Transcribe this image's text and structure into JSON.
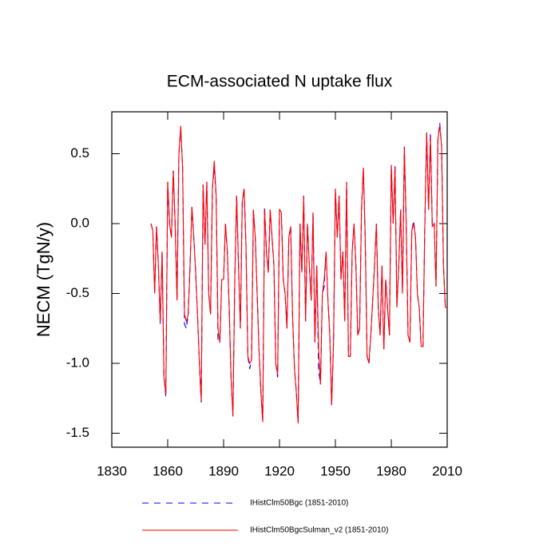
{
  "chart_data": {
    "type": "line",
    "title": "ECM-associated N uptake flux",
    "y_label": "NECM  (TgN/y)",
    "xlim": [
      1830,
      2010
    ],
    "xticks": [
      1830,
      1860,
      1890,
      1920,
      1950,
      1980,
      2010
    ],
    "ylim": [
      -1.6,
      0.8
    ],
    "yticks": [
      {
        "value": 0.5,
        "label": "0.5"
      },
      {
        "value": 0,
        "label": "0.0"
      },
      {
        "value": -0.5,
        "label": "-0.5"
      },
      {
        "value": -1,
        "label": "-1.0"
      },
      {
        "value": -1.5,
        "label": "-1.5"
      }
    ],
    "x": [
      1851,
      1852,
      1853,
      1854,
      1855,
      1856,
      1857,
      1858,
      1859,
      1860,
      1861,
      1862,
      1863,
      1864,
      1865,
      1866,
      1867,
      1868,
      1869,
      1870,
      1871,
      1872,
      1873,
      1874,
      1875,
      1876,
      1877,
      1878,
      1879,
      1880,
      1881,
      1882,
      1883,
      1884,
      1885,
      1886,
      1887,
      1888,
      1889,
      1890,
      1891,
      1892,
      1893,
      1894,
      1895,
      1896,
      1897,
      1898,
      1899,
      1900,
      1901,
      1902,
      1903,
      1904,
      1905,
      1906,
      1907,
      1908,
      1909,
      1910,
      1911,
      1912,
      1913,
      1914,
      1915,
      1916,
      1917,
      1918,
      1919,
      1920,
      1921,
      1922,
      1923,
      1924,
      1925,
      1926,
      1927,
      1928,
      1929,
      1930,
      1931,
      1932,
      1933,
      1934,
      1935,
      1936,
      1937,
      1938,
      1939,
      1940,
      1941,
      1942,
      1943,
      1944,
      1945,
      1946,
      1947,
      1948,
      1949,
      1950,
      1951,
      1952,
      1953,
      1954,
      1955,
      1956,
      1957,
      1958,
      1959,
      1960,
      1961,
      1962,
      1963,
      1964,
      1965,
      1966,
      1967,
      1968,
      1969,
      1970,
      1971,
      1972,
      1973,
      1974,
      1975,
      1976,
      1977,
      1978,
      1979,
      1980,
      1981,
      1982,
      1983,
      1984,
      1985,
      1986,
      1987,
      1988,
      1989,
      1990,
      1991,
      1992,
      1993,
      1994,
      1995,
      1996,
      1997,
      1998,
      1999,
      2000,
      2001,
      2002,
      2003,
      2004,
      2005,
      2006,
      2007,
      2008,
      2009,
      2010
    ],
    "series": [
      {
        "name": "IHistClm50Bgc (1851-2010)",
        "color": "#0000ff",
        "dash": true,
        "values": [
          0.0,
          -0.05,
          -0.5,
          -0.02,
          -0.3,
          -0.72,
          -0.2,
          -1.1,
          -1.24,
          0.3,
          0.0,
          -0.1,
          0.38,
          0.0,
          -0.55,
          0.5,
          0.68,
          0.4,
          -0.72,
          -0.75,
          -0.65,
          -0.3,
          0.12,
          -0.1,
          -0.35,
          -0.65,
          -1.0,
          -1.28,
          0.28,
          -0.15,
          0.3,
          -0.5,
          -0.65,
          0.25,
          0.4,
          0.2,
          -0.85,
          -0.85,
          -0.4,
          -0.4,
          0.0,
          -0.2,
          -0.6,
          -1.1,
          -1.38,
          -0.4,
          0.2,
          -0.3,
          -0.75,
          0.15,
          0.25,
          -0.15,
          -0.95,
          -1.04,
          -0.98,
          0.1,
          -0.1,
          -0.5,
          -0.9,
          -1.2,
          -1.42,
          0.12,
          -0.2,
          -0.35,
          0.1,
          -0.1,
          -0.3,
          -1.0,
          -1.1,
          0.1,
          0.08,
          -0.4,
          -0.5,
          -0.75,
          -0.1,
          -0.02,
          -0.65,
          -1.03,
          -1.2,
          -1.43,
          0.0,
          -0.35,
          0.2,
          -0.7,
          0.0,
          -0.3,
          -0.55,
          0.08,
          -0.85,
          -0.3,
          -1.05,
          -1.15,
          -0.5,
          -0.45,
          -0.2,
          -0.55,
          -0.8,
          -1.3,
          -0.85,
          0.25,
          -0.1,
          0.2,
          -0.4,
          -0.2,
          -0.7,
          0.3,
          -0.95,
          -0.95,
          -0.2,
          0.0,
          -0.3,
          -0.8,
          -0.75,
          0.1,
          0.4,
          -0.1,
          -0.95,
          -1.0,
          -0.8,
          -0.55,
          -0.3,
          0.0,
          -0.6,
          -0.8,
          -0.3,
          -0.9,
          -0.4,
          -0.6,
          -0.8,
          0.42,
          0.0,
          0.42,
          -0.6,
          -0.3,
          0.1,
          -0.5,
          0.55,
          0.0,
          -0.8,
          -0.85,
          -0.05,
          0.02,
          -0.1,
          -0.5,
          -0.6,
          -0.88,
          -0.88,
          0.0,
          0.66,
          0.1,
          0.65,
          -0.02,
          0.0,
          -0.45,
          0.6,
          0.72,
          0.55,
          -0.3,
          -0.6,
          -0.6
        ]
      },
      {
        "name": "IHistClm50BgcSulman_v2 (1851-2010)",
        "color": "#ff0000",
        "dash": false,
        "values": [
          0.0,
          -0.05,
          -0.5,
          -0.02,
          -0.3,
          -0.7,
          -0.2,
          -1.1,
          -1.22,
          0.3,
          0.0,
          -0.1,
          0.38,
          0.0,
          -0.55,
          0.5,
          0.7,
          0.4,
          -0.65,
          -0.7,
          -0.65,
          -0.3,
          0.12,
          -0.1,
          -0.35,
          -0.65,
          -1.0,
          -1.27,
          0.28,
          -0.15,
          0.3,
          -0.5,
          -0.65,
          0.25,
          0.45,
          0.2,
          -0.75,
          -0.85,
          -0.4,
          -0.4,
          0.0,
          -0.2,
          -0.6,
          -1.1,
          -1.38,
          -0.4,
          0.2,
          -0.3,
          -0.75,
          0.15,
          0.25,
          -0.15,
          -0.95,
          -1.0,
          -0.98,
          0.1,
          -0.1,
          -0.5,
          -0.9,
          -1.2,
          -1.42,
          0.1,
          -0.2,
          -0.35,
          0.1,
          -0.1,
          -0.3,
          -1.0,
          -1.08,
          0.1,
          0.08,
          -0.4,
          -0.5,
          -0.75,
          -0.1,
          -0.02,
          -0.65,
          -1.03,
          -1.2,
          -1.43,
          0.0,
          -0.35,
          0.2,
          -0.7,
          0.0,
          -0.3,
          -0.55,
          0.08,
          -0.85,
          -0.3,
          -0.9,
          -1.15,
          -0.5,
          -0.4,
          -0.2,
          -0.55,
          -0.8,
          -1.3,
          -0.85,
          0.25,
          -0.1,
          0.2,
          -0.4,
          -0.2,
          -0.7,
          0.3,
          -0.95,
          -0.95,
          -0.2,
          0.0,
          -0.3,
          -0.8,
          -0.75,
          0.1,
          0.4,
          -0.1,
          -0.95,
          -1.0,
          -0.8,
          -0.55,
          -0.3,
          0.0,
          -0.6,
          -0.8,
          -0.3,
          -0.9,
          -0.4,
          -0.6,
          -0.8,
          0.42,
          0.0,
          0.4,
          -0.6,
          -0.3,
          0.1,
          -0.5,
          0.55,
          0.0,
          -0.8,
          -0.85,
          -0.05,
          0.0,
          -0.1,
          -0.5,
          -0.6,
          -0.88,
          -0.88,
          0.0,
          0.65,
          0.1,
          0.62,
          -0.02,
          0.0,
          -0.45,
          0.6,
          0.7,
          0.55,
          -0.3,
          -0.6,
          -0.6
        ]
      }
    ],
    "legend": "bottom"
  }
}
